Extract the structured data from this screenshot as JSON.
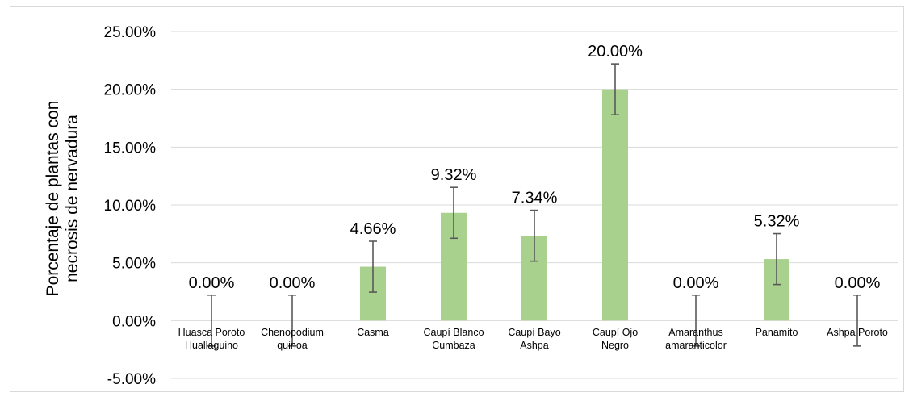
{
  "chart_data": {
    "type": "bar",
    "title": "",
    "xlabel": "",
    "ylabel": [
      "Porcentaje de plantas con",
      "necrosis de nervadura"
    ],
    "categories": [
      [
        "Huasca Poroto",
        "Huallaguino"
      ],
      [
        "Chenopodium",
        "quinoa"
      ],
      [
        "Casma"
      ],
      [
        "Caupí Blanco",
        "Cumbaza"
      ],
      [
        "Caupí Bayo",
        "Ashpa"
      ],
      [
        "Caupí Ojo",
        "Negro"
      ],
      [
        "Amaranthus",
        "amaranticolor"
      ],
      [
        "Panamito"
      ],
      [
        "Ashpa Poroto"
      ]
    ],
    "values": [
      0.0,
      0.0,
      4.66,
      9.32,
      7.34,
      20.0,
      0.0,
      5.32,
      0.0
    ],
    "data_labels": [
      "0.00%",
      "0.00%",
      "4.66%",
      "9.32%",
      "7.34%",
      "20.00%",
      "0.00%",
      "5.32%",
      "0.00%"
    ],
    "error": 2.2,
    "ylim": [
      -5,
      25
    ],
    "yticks": [
      25,
      20,
      15,
      10,
      5,
      0,
      -5
    ],
    "ytick_labels": [
      "25.00%",
      "20.00%",
      "15.00%",
      "10.00%",
      "5.00%",
      "0.00%",
      "-5.00%"
    ],
    "grid": true,
    "colors": {
      "bar": "#a9d18e",
      "grid": "#d9d9d9",
      "error_bar": "#595959"
    }
  }
}
